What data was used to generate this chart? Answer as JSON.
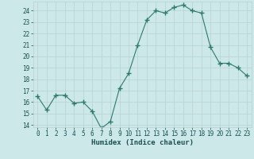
{
  "x": [
    0,
    1,
    2,
    3,
    4,
    5,
    6,
    7,
    8,
    9,
    10,
    11,
    12,
    13,
    14,
    15,
    16,
    17,
    18,
    19,
    20,
    21,
    22,
    23
  ],
  "y": [
    16.5,
    15.3,
    16.6,
    16.6,
    15.9,
    16.0,
    15.2,
    13.7,
    14.3,
    17.2,
    18.5,
    21.0,
    23.2,
    24.0,
    23.8,
    24.3,
    24.5,
    24.0,
    23.8,
    20.8,
    19.4,
    19.4,
    19.0,
    18.3
  ],
  "xlabel": "Humidex (Indice chaleur)",
  "xlim": [
    -0.5,
    23.5
  ],
  "ylim": [
    13.8,
    24.8
  ],
  "yticks": [
    14,
    15,
    16,
    17,
    18,
    19,
    20,
    21,
    22,
    23,
    24
  ],
  "xticks": [
    0,
    1,
    2,
    3,
    4,
    5,
    6,
    7,
    8,
    9,
    10,
    11,
    12,
    13,
    14,
    15,
    16,
    17,
    18,
    19,
    20,
    21,
    22,
    23
  ],
  "line_color": "#2d7a6e",
  "marker_color": "#2d7a6e",
  "bg_outer": "#cce8e8",
  "bg_plot": "#cce8e8",
  "grid_line_color": "#b8d0d0",
  "font_color": "#1a5050",
  "tick_fontsize": 5.5,
  "xlabel_fontsize": 6.5
}
